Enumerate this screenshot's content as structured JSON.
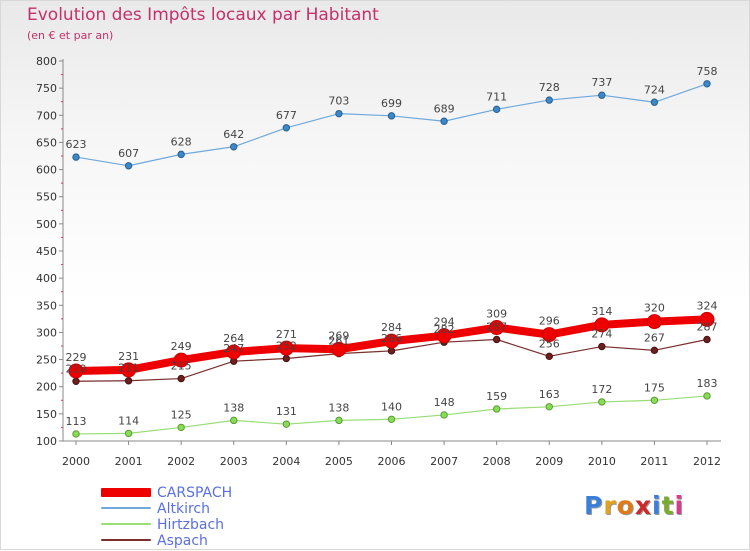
{
  "header": {
    "title": "Evolution des Impôts locaux par Habitant",
    "subtitle": "(en € et par an)"
  },
  "chart_data": {
    "type": "line",
    "title": "Evolution des Impôts locaux par Habitant",
    "subtitle": "(en € et par an)",
    "xlabel": "",
    "ylabel": "",
    "ylim": [
      100,
      800
    ],
    "yticks": [
      100,
      150,
      200,
      250,
      300,
      350,
      400,
      450,
      500,
      550,
      600,
      650,
      700,
      750,
      800
    ],
    "grid": false,
    "legend_position": "bottom-left",
    "x": [
      "2000",
      "2001",
      "2002",
      "2003",
      "2004",
      "2005",
      "2006",
      "2007",
      "2008",
      "2009",
      "2010",
      "2011",
      "2012"
    ],
    "series": [
      {
        "name": "CARSPACH",
        "color": "#ee0000",
        "values": [
          229,
          231,
          249,
          264,
          271,
          269,
          284,
          294,
          309,
          296,
          314,
          320,
          324
        ]
      },
      {
        "name": "Altkirch",
        "color": "#6fa8dc",
        "values": [
          623,
          607,
          628,
          642,
          677,
          703,
          699,
          689,
          711,
          728,
          737,
          724,
          758
        ]
      },
      {
        "name": "Hirtzbach",
        "color": "#99dd77",
        "values": [
          113,
          114,
          125,
          138,
          131,
          138,
          140,
          148,
          159,
          163,
          172,
          175,
          183
        ]
      },
      {
        "name": "Aspach",
        "color": "#7a2e2e",
        "values": [
          210,
          211,
          215,
          247,
          252,
          261,
          266,
          282,
          287,
          256,
          274,
          267,
          287
        ]
      }
    ]
  },
  "legend": {
    "items": [
      {
        "label": "CARSPACH",
        "color": "#ee0000"
      },
      {
        "label": "Altkirch",
        "color": "#6fa8dc"
      },
      {
        "label": "Hirtzbach",
        "color": "#99dd77"
      },
      {
        "label": "Aspach",
        "color": "#7a2e2e"
      }
    ]
  },
  "logo": {
    "letters": [
      "P",
      "r",
      "o",
      "x",
      "i",
      "t",
      "i"
    ],
    "colors": [
      "#3a7fd8",
      "#e0a020",
      "#e07a18",
      "#cc2a2a",
      "#3a7fd8",
      "#7aaa30",
      "#d93a8a"
    ]
  }
}
